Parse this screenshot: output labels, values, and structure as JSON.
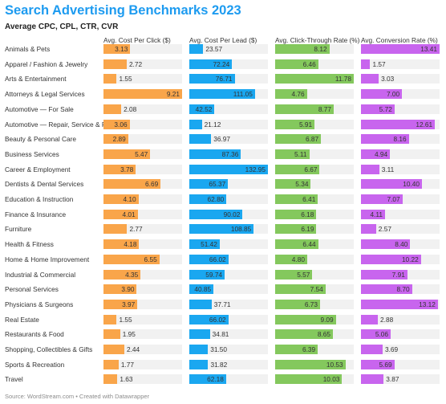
{
  "title": "Search Advertising Benchmarks 2023",
  "subtitle": "Average CPC, CPL, CTR, CVR",
  "footer": "Source: WordStream.com • Created with Datawrapper",
  "colors": {
    "title": "#1d9bf0",
    "cpc": "#f9a54a",
    "cpl": "#1aa7f0",
    "ctr": "#84c85d",
    "cvr": "#c865ee",
    "track": "#f1f1f1"
  },
  "chart_data": {
    "type": "bar",
    "orientation": "horizontal",
    "grid": false,
    "legend": "none",
    "categories": [
      "Animals & Pets",
      "Apparel / Fashion & Jewelry",
      "Arts & Entertainment",
      "Attorneys & Legal Services",
      "Automotive — For Sale",
      "Automotive — Repair, Service & Parts",
      "Beauty & Personal Care",
      "Business Services",
      "Career & Employment",
      "Dentists & Dental Services",
      "Education & Instruction",
      "Finance & Insurance",
      "Furniture",
      "Health & Fitness",
      "Home & Home Improvement",
      "Industrial & Commercial",
      "Personal Services",
      "Physicians & Surgeons",
      "Real Estate",
      "Restaurants & Food",
      "Shopping, Collectibles & Gifts",
      "Sports & Recreation",
      "Travel"
    ],
    "series": [
      {
        "name": "Avg. Cost Per Click ($)",
        "color": "#f9a54a",
        "max": 9.21,
        "values": [
          3.13,
          2.72,
          1.55,
          9.21,
          2.08,
          3.06,
          2.89,
          5.47,
          3.78,
          6.69,
          4.1,
          4.01,
          2.77,
          4.18,
          6.55,
          4.35,
          3.9,
          3.97,
          1.55,
          1.95,
          2.44,
          1.77,
          1.63
        ]
      },
      {
        "name": "Avg. Cost Per Lead ($)",
        "color": "#1aa7f0",
        "max": 132.95,
        "values": [
          23.57,
          72.24,
          76.71,
          111.05,
          42.52,
          21.12,
          36.97,
          87.36,
          132.95,
          65.37,
          62.8,
          90.02,
          108.85,
          51.42,
          66.02,
          59.74,
          40.85,
          37.71,
          66.02,
          34.81,
          31.5,
          31.82,
          62.18
        ]
      },
      {
        "name": "Avg. Click-Through Rate (%)",
        "color": "#84c85d",
        "max": 11.78,
        "values": [
          8.12,
          6.46,
          11.78,
          4.76,
          8.77,
          5.91,
          6.87,
          5.11,
          6.67,
          5.34,
          6.41,
          6.18,
          6.19,
          6.44,
          4.8,
          5.57,
          7.54,
          6.73,
          9.09,
          8.65,
          6.39,
          10.53,
          10.03
        ]
      },
      {
        "name": "Avg. Conversion Rate (%)",
        "color": "#c865ee",
        "max": 13.41,
        "values": [
          13.41,
          1.57,
          3.03,
          7.0,
          5.72,
          12.61,
          8.16,
          4.94,
          3.11,
          10.4,
          7.07,
          4.11,
          2.57,
          8.4,
          10.22,
          7.91,
          8.7,
          13.12,
          2.88,
          5.06,
          3.69,
          5.69,
          3.87
        ]
      }
    ]
  }
}
